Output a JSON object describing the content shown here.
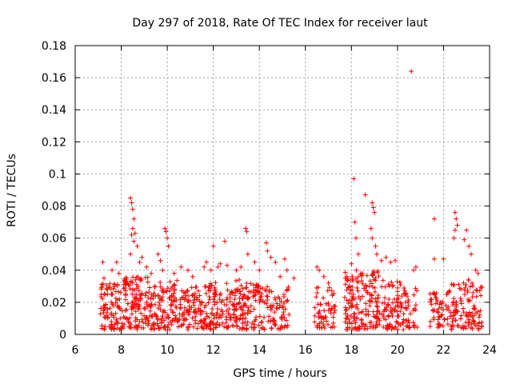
{
  "chart_data": {
    "type": "scatter",
    "title": "Day 297 of 2018, Rate Of TEC Index for receiver laut",
    "xlabel": "GPS time / hours",
    "ylabel": "ROTI / TECUs",
    "xlim": [
      6,
      24
    ],
    "ylim": [
      0,
      0.18
    ],
    "xticks": [
      6,
      8,
      10,
      12,
      14,
      16,
      18,
      20,
      22,
      24
    ],
    "yticks": [
      0,
      0.02,
      0.04,
      0.06,
      0.08,
      0.1,
      0.12,
      0.14,
      0.16,
      0.18
    ],
    "xtick_labels": [
      "6",
      "8",
      "10",
      "12",
      "14",
      "16",
      "18",
      "20",
      "22",
      "24"
    ],
    "ytick_labels": [
      "0",
      "0.02",
      "0.04",
      "0.06",
      "0.08",
      "0.1",
      "0.12",
      "0.14",
      "0.16",
      "0.18"
    ],
    "grid": true,
    "marker": "+",
    "color": "#ff0000",
    "series": [
      {
        "name": "ROTI",
        "points": [
          [
            7.2,
            0.045
          ],
          [
            7.25,
            0.035
          ],
          [
            7.4,
            0.028
          ],
          [
            7.6,
            0.04
          ],
          [
            7.7,
            0.03
          ],
          [
            7.8,
            0.045
          ],
          [
            7.9,
            0.038
          ],
          [
            8.4,
            0.085
          ],
          [
            8.45,
            0.082
          ],
          [
            8.5,
            0.078
          ],
          [
            8.55,
            0.072
          ],
          [
            8.5,
            0.066
          ],
          [
            8.45,
            0.062
          ],
          [
            8.6,
            0.063
          ],
          [
            8.55,
            0.058
          ],
          [
            8.7,
            0.055
          ],
          [
            8.4,
            0.05
          ],
          [
            8.8,
            0.045
          ],
          [
            8.9,
            0.048
          ],
          [
            9.1,
            0.042
          ],
          [
            9.3,
            0.038
          ],
          [
            9.6,
            0.05
          ],
          [
            9.7,
            0.046
          ],
          [
            9.9,
            0.066
          ],
          [
            9.95,
            0.064
          ],
          [
            10.0,
            0.06
          ],
          [
            10.05,
            0.055
          ],
          [
            9.8,
            0.04
          ],
          [
            10.3,
            0.038
          ],
          [
            10.6,
            0.042
          ],
          [
            10.9,
            0.04
          ],
          [
            11.1,
            0.036
          ],
          [
            11.6,
            0.042
          ],
          [
            11.7,
            0.045
          ],
          [
            11.9,
            0.04
          ],
          [
            12.0,
            0.055
          ],
          [
            12.2,
            0.042
          ],
          [
            12.3,
            0.044
          ],
          [
            12.5,
            0.058
          ],
          [
            12.6,
            0.043
          ],
          [
            13.0,
            0.04
          ],
          [
            13.2,
            0.042
          ],
          [
            13.4,
            0.066
          ],
          [
            13.45,
            0.064
          ],
          [
            13.5,
            0.05
          ],
          [
            13.8,
            0.045
          ],
          [
            14.0,
            0.04
          ],
          [
            14.3,
            0.057
          ],
          [
            14.35,
            0.052
          ],
          [
            14.5,
            0.048
          ],
          [
            14.7,
            0.045
          ],
          [
            14.9,
            0.036
          ],
          [
            15.1,
            0.047
          ],
          [
            15.2,
            0.04
          ],
          [
            15.5,
            0.035
          ],
          [
            16.5,
            0.042
          ],
          [
            16.6,
            0.04
          ],
          [
            16.8,
            0.036
          ],
          [
            17.0,
            0.032
          ],
          [
            17.8,
            0.036
          ],
          [
            18.1,
            0.097
          ],
          [
            18.15,
            0.07
          ],
          [
            18.2,
            0.06
          ],
          [
            18.3,
            0.05
          ],
          [
            18.0,
            0.044
          ],
          [
            18.6,
            0.087
          ],
          [
            18.9,
            0.082
          ],
          [
            18.95,
            0.079
          ],
          [
            19.0,
            0.076
          ],
          [
            18.85,
            0.066
          ],
          [
            18.9,
            0.06
          ],
          [
            19.05,
            0.055
          ],
          [
            19.1,
            0.05
          ],
          [
            19.3,
            0.046
          ],
          [
            19.5,
            0.048
          ],
          [
            19.7,
            0.045
          ],
          [
            19.9,
            0.046
          ],
          [
            20.6,
            0.164
          ],
          [
            20.7,
            0.04
          ],
          [
            20.8,
            0.042
          ],
          [
            21.6,
            0.072
          ],
          [
            21.6,
            0.047
          ],
          [
            22.0,
            0.047
          ],
          [
            22.5,
            0.076
          ],
          [
            22.55,
            0.072
          ],
          [
            22.6,
            0.068
          ],
          [
            22.5,
            0.065
          ],
          [
            22.45,
            0.06
          ],
          [
            22.9,
            0.059
          ],
          [
            23.0,
            0.065
          ],
          [
            23.1,
            0.055
          ],
          [
            23.2,
            0.05
          ],
          [
            23.4,
            0.04
          ],
          [
            23.5,
            0.038
          ]
        ]
      }
    ],
    "dense_clusters": [
      {
        "x_range": [
          7.1,
          8.0
        ],
        "y_range": [
          0.003,
          0.032
        ],
        "count": 90
      },
      {
        "x_range": [
          8.0,
          9.2
        ],
        "y_range": [
          0.003,
          0.036
        ],
        "count": 130
      },
      {
        "x_range": [
          9.2,
          10.5
        ],
        "y_range": [
          0.003,
          0.034
        ],
        "count": 120
      },
      {
        "x_range": [
          10.5,
          11.8
        ],
        "y_range": [
          0.003,
          0.03
        ],
        "count": 110
      },
      {
        "x_range": [
          11.8,
          13.2
        ],
        "y_range": [
          0.003,
          0.034
        ],
        "count": 130
      },
      {
        "x_range": [
          13.2,
          14.5
        ],
        "y_range": [
          0.003,
          0.032
        ],
        "count": 110
      },
      {
        "x_range": [
          14.5,
          15.3
        ],
        "y_range": [
          0.003,
          0.03
        ],
        "count": 55
      },
      {
        "x_range": [
          16.4,
          17.3
        ],
        "y_range": [
          0.004,
          0.03
        ],
        "count": 60
      },
      {
        "x_range": [
          17.7,
          19.3
        ],
        "y_range": [
          0.003,
          0.04
        ],
        "count": 170
      },
      {
        "x_range": [
          19.3,
          20.5
        ],
        "y_range": [
          0.003,
          0.034
        ],
        "count": 100
      },
      {
        "x_range": [
          20.4,
          20.9
        ],
        "y_range": [
          0.004,
          0.03
        ],
        "count": 20
      },
      {
        "x_range": [
          21.4,
          22.2
        ],
        "y_range": [
          0.004,
          0.03
        ],
        "count": 50
      },
      {
        "x_range": [
          22.2,
          23.7
        ],
        "y_range": [
          0.003,
          0.034
        ],
        "count": 120
      }
    ]
  }
}
